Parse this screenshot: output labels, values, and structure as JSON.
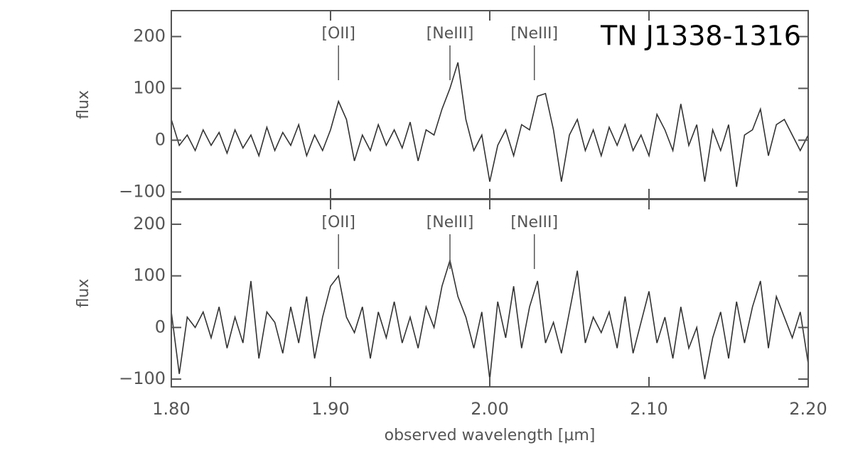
{
  "chart_data": [
    {
      "type": "line",
      "title": "TN J1338-1316",
      "ylabel": "flux",
      "ylim": [
        -113,
        250
      ],
      "yticks": [
        {
          "value": -100,
          "label": "−100"
        },
        0,
        100,
        200
      ],
      "annotations": [
        {
          "text": "[OII]",
          "x": 1.905
        },
        {
          "text": "[NeIII]",
          "x": 1.975
        },
        {
          "text": "[NeIII]",
          "x": 2.028
        }
      ],
      "x": [
        1.8,
        1.805,
        1.81,
        1.815,
        1.82,
        1.825,
        1.83,
        1.835,
        1.84,
        1.845,
        1.85,
        1.855,
        1.86,
        1.865,
        1.87,
        1.875,
        1.88,
        1.885,
        1.89,
        1.895,
        1.9,
        1.905,
        1.91,
        1.915,
        1.92,
        1.925,
        1.93,
        1.935,
        1.94,
        1.945,
        1.95,
        1.955,
        1.96,
        1.965,
        1.97,
        1.975,
        1.98,
        1.985,
        1.99,
        1.995,
        2.0,
        2.005,
        2.01,
        2.015,
        2.02,
        2.025,
        2.03,
        2.035,
        2.04,
        2.045,
        2.05,
        2.055,
        2.06,
        2.065,
        2.07,
        2.075,
        2.08,
        2.085,
        2.09,
        2.095,
        2.1,
        2.105,
        2.11,
        2.115,
        2.12,
        2.125,
        2.13,
        2.135,
        2.14,
        2.145,
        2.15,
        2.155,
        2.16,
        2.165,
        2.17,
        2.175,
        2.18,
        2.185,
        2.19,
        2.195,
        2.2
      ],
      "series": [
        {
          "color": "#333333",
          "values": [
            40,
            -10,
            10,
            -20,
            20,
            -10,
            15,
            -25,
            20,
            -15,
            10,
            -30,
            25,
            -20,
            15,
            -10,
            30,
            -30,
            10,
            -20,
            20,
            75,
            40,
            -40,
            10,
            -20,
            30,
            -10,
            20,
            -15,
            35,
            -40,
            20,
            10,
            60,
            100,
            150,
            40,
            -20,
            10,
            -80,
            -10,
            20,
            -30,
            30,
            20,
            85,
            90,
            20,
            -80,
            10,
            40,
            -20,
            20,
            -30,
            25,
            -10,
            30,
            -20,
            10,
            -30,
            50,
            20,
            -20,
            70,
            -10,
            30,
            -80,
            20,
            -20,
            30,
            -90,
            10,
            20,
            60,
            -30,
            30,
            40,
            10,
            -20,
            10
          ]
        }
      ]
    },
    {
      "type": "line",
      "ylabel": "flux",
      "xlabel": "observed wavelength [μm]",
      "xlim": [
        1.8,
        2.2
      ],
      "xticks": [
        {
          "value": 1.8,
          "label": "1.80"
        },
        {
          "value": 1.9,
          "label": "1.90"
        },
        {
          "value": 2.0,
          "label": "2.00"
        },
        {
          "value": 2.1,
          "label": "2.10"
        },
        {
          "value": 2.2,
          "label": "2.20"
        }
      ],
      "ylim": [
        -115,
        248
      ],
      "yticks": [
        {
          "value": -100,
          "label": "−100"
        },
        0,
        100,
        200
      ],
      "annotations": [
        {
          "text": "[OII]",
          "x": 1.905
        },
        {
          "text": "[NeIII]",
          "x": 1.975
        },
        {
          "text": "[NeIII]",
          "x": 2.028
        }
      ],
      "x": [
        1.8,
        1.805,
        1.81,
        1.815,
        1.82,
        1.825,
        1.83,
        1.835,
        1.84,
        1.845,
        1.85,
        1.855,
        1.86,
        1.865,
        1.87,
        1.875,
        1.88,
        1.885,
        1.89,
        1.895,
        1.9,
        1.905,
        1.91,
        1.915,
        1.92,
        1.925,
        1.93,
        1.935,
        1.94,
        1.945,
        1.95,
        1.955,
        1.96,
        1.965,
        1.97,
        1.975,
        1.98,
        1.985,
        1.99,
        1.995,
        2.0,
        2.005,
        2.01,
        2.015,
        2.02,
        2.025,
        2.03,
        2.035,
        2.04,
        2.045,
        2.05,
        2.055,
        2.06,
        2.065,
        2.07,
        2.075,
        2.08,
        2.085,
        2.09,
        2.095,
        2.1,
        2.105,
        2.11,
        2.115,
        2.12,
        2.125,
        2.13,
        2.135,
        2.14,
        2.145,
        2.15,
        2.155,
        2.16,
        2.165,
        2.17,
        2.175,
        2.18,
        2.185,
        2.19,
        2.195,
        2.2
      ],
      "series": [
        {
          "color": "#333333",
          "values": [
            30,
            -90,
            20,
            0,
            30,
            -20,
            40,
            -40,
            20,
            -30,
            90,
            -60,
            30,
            10,
            -50,
            40,
            -30,
            60,
            -60,
            20,
            80,
            100,
            20,
            -10,
            40,
            -60,
            30,
            -20,
            50,
            -30,
            20,
            -40,
            40,
            0,
            80,
            130,
            60,
            20,
            -40,
            30,
            -100,
            50,
            -20,
            80,
            -40,
            40,
            90,
            -30,
            10,
            -50,
            30,
            110,
            -30,
            20,
            -10,
            30,
            -40,
            60,
            -50,
            10,
            70,
            -30,
            20,
            -60,
            40,
            -40,
            0,
            -100,
            -20,
            30,
            -60,
            50,
            -30,
            40,
            90,
            -40,
            60,
            20,
            -20,
            30,
            -70
          ]
        }
      ]
    }
  ]
}
